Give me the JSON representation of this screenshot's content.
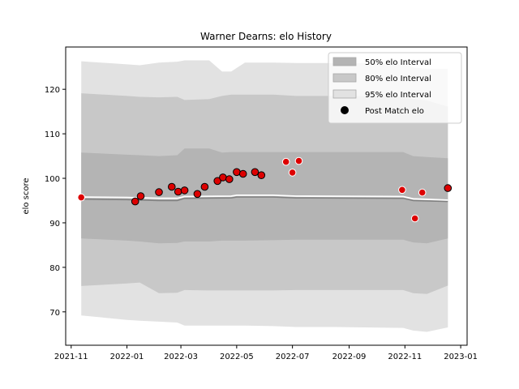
{
  "chart_data": {
    "type": "line",
    "title": "Warner Dearns: elo History",
    "xlabel": "",
    "ylabel": "elo score",
    "xlim": [
      "2021-10-26",
      "2023-01-08"
    ],
    "ylim": [
      62.5,
      129.5
    ],
    "x_ticks": [
      "2021-11-01",
      "2022-01-01",
      "2022-03-01",
      "2022-05-01",
      "2022-07-01",
      "2022-09-01",
      "2022-11-01",
      "2023-01-01"
    ],
    "x_tick_labels": [
      "2021-11",
      "2022-01",
      "2022-03",
      "2022-05",
      "2022-07",
      "2022-09",
      "2022-11",
      "2023-01"
    ],
    "y_ticks": [
      70,
      80,
      90,
      100,
      110,
      120
    ],
    "legend_position": "upper-right",
    "grid": false,
    "colors": {
      "band_50": "#b4b4b4",
      "band_80": "#c8c8c8",
      "band_95": "#e2e2e2",
      "mean_line": "#ffffff",
      "median_line": "#808080",
      "post_match_fill": "#dd0000",
      "above_mean_edge": "#ffffff",
      "below_mean_edge": "#000000"
    },
    "legend": [
      {
        "label": "50% elo Interval",
        "kind": "band",
        "color": "#b4b4b4"
      },
      {
        "label": "80% elo Interval",
        "kind": "band",
        "color": "#c8c8c8"
      },
      {
        "label": "95% elo Interval",
        "kind": "band",
        "color": "#e2e2e2"
      },
      {
        "label": "Post Match elo",
        "kind": "marker",
        "color": "#000000"
      }
    ],
    "bands": {
      "x": [
        "2021-11-12",
        "2022-01-01",
        "2022-01-15",
        "2022-02-05",
        "2022-02-25",
        "2022-03-05",
        "2022-04-01",
        "2022-04-15",
        "2022-04-25",
        "2022-05-10",
        "2022-06-10",
        "2022-07-05",
        "2022-08-15",
        "2022-10-30",
        "2022-11-10",
        "2022-11-25",
        "2022-12-18"
      ],
      "lower_95": [
        69.2,
        68.2,
        68.0,
        67.8,
        67.6,
        66.9,
        66.9,
        66.9,
        66.9,
        66.9,
        66.8,
        66.6,
        66.6,
        66.4,
        65.8,
        65.5,
        66.5
      ],
      "lower_80": [
        75.8,
        76.4,
        76.6,
        74.2,
        74.3,
        74.9,
        74.8,
        74.8,
        74.8,
        74.8,
        74.8,
        74.9,
        74.9,
        74.9,
        74.2,
        74.0,
        75.9
      ],
      "lower_50": [
        86.5,
        86.0,
        85.8,
        85.4,
        85.5,
        85.8,
        85.8,
        86.0,
        86.0,
        86.0,
        86.1,
        86.2,
        86.2,
        86.2,
        85.6,
        85.4,
        86.5
      ],
      "upper_50": [
        105.8,
        105.3,
        105.2,
        105.0,
        105.2,
        106.7,
        106.7,
        105.8,
        105.9,
        105.9,
        105.9,
        105.9,
        105.9,
        105.9,
        105.0,
        104.8,
        104.5
      ],
      "upper_80": [
        119.1,
        118.5,
        118.3,
        118.2,
        118.3,
        117.6,
        117.8,
        118.5,
        118.8,
        118.8,
        118.8,
        118.5,
        118.5,
        118.5,
        117.8,
        117.5,
        116.1
      ],
      "upper_95": [
        126.3,
        125.6,
        125.4,
        126.0,
        126.2,
        126.5,
        126.5,
        124.0,
        124.0,
        126.0,
        126.0,
        125.9,
        125.9,
        125.9,
        124.9,
        124.6,
        124.6
      ]
    },
    "mean_line": {
      "x": [
        "2021-11-12",
        "2022-01-01",
        "2022-02-05",
        "2022-02-25",
        "2022-03-05",
        "2022-04-25",
        "2022-05-01",
        "2022-06-10",
        "2022-07-05",
        "2022-10-30",
        "2022-11-10",
        "2022-12-18"
      ],
      "y": [
        95.8,
        95.7,
        95.5,
        95.5,
        95.9,
        96.0,
        96.2,
        96.2,
        96.0,
        95.9,
        95.4,
        95.1
      ]
    },
    "median_line": {
      "x": [
        "2021-11-12",
        "2022-01-01",
        "2022-02-05",
        "2022-02-25",
        "2022-03-05",
        "2022-04-25",
        "2022-05-01",
        "2022-06-10",
        "2022-07-05",
        "2022-10-30",
        "2022-11-10",
        "2022-12-18"
      ],
      "y": [
        95.3,
        95.2,
        95.0,
        95.0,
        95.5,
        95.6,
        95.8,
        95.8,
        95.6,
        95.5,
        95.0,
        94.8
      ]
    },
    "points": [
      {
        "x": "2021-11-12",
        "y": 95.7,
        "edge": "above_mean"
      },
      {
        "x": "2022-01-10",
        "y": 94.8,
        "edge": "below_mean"
      },
      {
        "x": "2022-01-16",
        "y": 96.0,
        "edge": "below_mean"
      },
      {
        "x": "2022-02-05",
        "y": 96.9,
        "edge": "below_mean"
      },
      {
        "x": "2022-02-19",
        "y": 98.1,
        "edge": "below_mean"
      },
      {
        "x": "2022-02-26",
        "y": 97.0,
        "edge": "below_mean"
      },
      {
        "x": "2022-03-05",
        "y": 97.3,
        "edge": "below_mean"
      },
      {
        "x": "2022-03-19",
        "y": 96.5,
        "edge": "below_mean"
      },
      {
        "x": "2022-03-27",
        "y": 98.1,
        "edge": "below_mean"
      },
      {
        "x": "2022-04-10",
        "y": 99.4,
        "edge": "below_mean"
      },
      {
        "x": "2022-04-16",
        "y": 100.2,
        "edge": "below_mean"
      },
      {
        "x": "2022-04-23",
        "y": 99.8,
        "edge": "below_mean"
      },
      {
        "x": "2022-05-01",
        "y": 101.4,
        "edge": "below_mean"
      },
      {
        "x": "2022-05-08",
        "y": 101.0,
        "edge": "below_mean"
      },
      {
        "x": "2022-05-21",
        "y": 101.4,
        "edge": "below_mean"
      },
      {
        "x": "2022-05-28",
        "y": 100.7,
        "edge": "below_mean"
      },
      {
        "x": "2022-06-24",
        "y": 103.7,
        "edge": "above_mean"
      },
      {
        "x": "2022-07-01",
        "y": 101.3,
        "edge": "above_mean"
      },
      {
        "x": "2022-07-08",
        "y": 103.9,
        "edge": "above_mean"
      },
      {
        "x": "2022-10-29",
        "y": 97.4,
        "edge": "above_mean"
      },
      {
        "x": "2022-11-12",
        "y": 91.0,
        "edge": "above_mean"
      },
      {
        "x": "2022-11-20",
        "y": 96.8,
        "edge": "above_mean"
      },
      {
        "x": "2022-12-18",
        "y": 97.8,
        "edge": "below_mean"
      }
    ]
  }
}
